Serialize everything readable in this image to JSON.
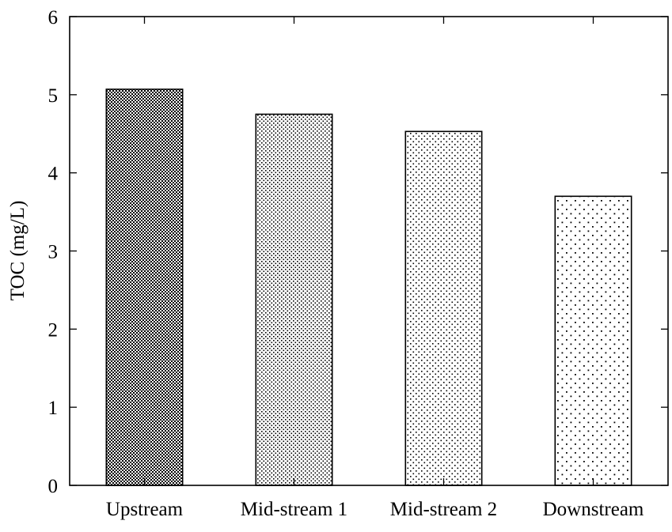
{
  "chart_data": {
    "type": "bar",
    "title": "",
    "xlabel": "",
    "ylabel": "TOC (mg/L)",
    "categories": [
      "Upstream",
      "Mid-stream 1",
      "Mid-stream 2",
      "Downstream"
    ],
    "values": [
      5.07,
      4.75,
      4.53,
      3.7
    ],
    "ylim": [
      0,
      6
    ],
    "yticks": [
      "0",
      "1",
      "2",
      "3",
      "4",
      "5",
      "6"
    ],
    "grid": false,
    "legend": "none",
    "bar_fill": "dotted-pattern",
    "colors": {
      "bar_stroke": "#000000",
      "dots": "#000000",
      "background": "#ffffff"
    }
  }
}
